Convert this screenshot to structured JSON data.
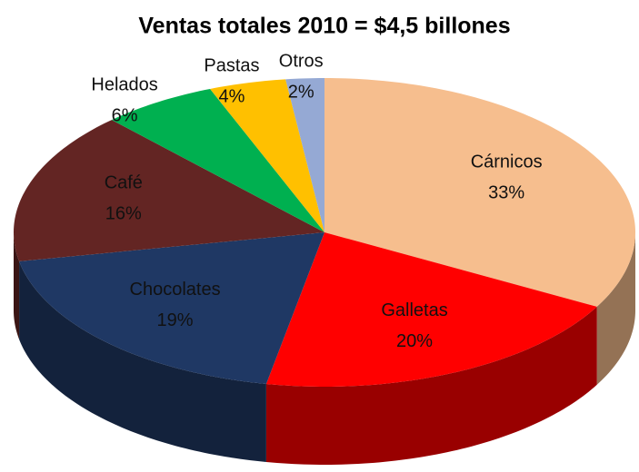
{
  "chart_data": {
    "type": "pie3d",
    "title": "Ventas totales 2010 = $4,5 billones",
    "categories": [
      "Cárnicos",
      "Galletas",
      "Chocolates",
      "Café",
      "Helados",
      "Pastas",
      "Otros"
    ],
    "values": [
      33,
      20,
      19,
      16,
      6,
      4,
      2
    ],
    "value_labels": [
      "33%",
      "20%",
      "19%",
      "16%",
      "6%",
      "4%",
      "2%"
    ],
    "colors": [
      "#f6be8e",
      "#ff0000",
      "#1f3864",
      "#632523",
      "#00b050",
      "#ffc000",
      "#95a9d4"
    ]
  }
}
